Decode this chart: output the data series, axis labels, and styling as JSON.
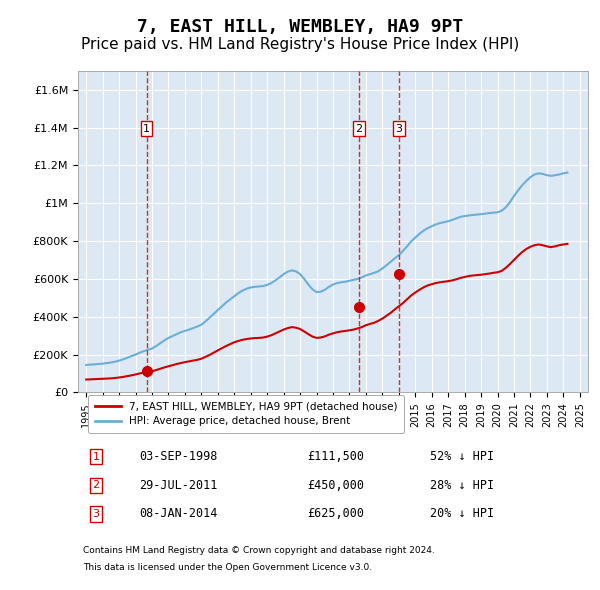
{
  "title": "7, EAST HILL, WEMBLEY, HA9 9PT",
  "subtitle": "Price paid vs. HM Land Registry's House Price Index (HPI)",
  "title_fontsize": 13,
  "subtitle_fontsize": 11,
  "background_color": "#ffffff",
  "plot_bg_color": "#dce9f5",
  "grid_color": "#ffffff",
  "hpi_color": "#6baed6",
  "paid_color": "#cc0000",
  "purchases": [
    {
      "date_num": 1998.67,
      "price": 111500,
      "label": "1"
    },
    {
      "date_num": 2011.57,
      "price": 450000,
      "label": "2"
    },
    {
      "date_num": 2014.02,
      "price": 625000,
      "label": "3"
    }
  ],
  "vline_dates": [
    1998.67,
    2011.57,
    2014.02
  ],
  "ylim": [
    0,
    1700000
  ],
  "yticks": [
    0,
    200000,
    400000,
    600000,
    800000,
    1000000,
    1200000,
    1400000,
    1600000
  ],
  "ytick_labels": [
    "£0",
    "£200K",
    "£400K",
    "£600K",
    "£800K",
    "£1M",
    "£1.2M",
    "£1.4M",
    "£1.6M"
  ],
  "xlim_start": 1994.5,
  "xlim_end": 2025.5,
  "xtick_years": [
    1995,
    1996,
    1997,
    1998,
    1999,
    2000,
    2001,
    2002,
    2003,
    2004,
    2005,
    2006,
    2007,
    2008,
    2009,
    2010,
    2011,
    2012,
    2013,
    2014,
    2015,
    2016,
    2017,
    2018,
    2019,
    2020,
    2021,
    2022,
    2023,
    2024,
    2025
  ],
  "legend_paid_label": "7, EAST HILL, WEMBLEY, HA9 9PT (detached house)",
  "legend_hpi_label": "HPI: Average price, detached house, Brent",
  "table_rows": [
    {
      "num": "1",
      "date": "03-SEP-1998",
      "price": "£111,500",
      "note": "52% ↓ HPI"
    },
    {
      "num": "2",
      "date": "29-JUL-2011",
      "price": "£450,000",
      "note": "28% ↓ HPI"
    },
    {
      "num": "3",
      "date": "08-JAN-2014",
      "price": "£625,000",
      "note": "20% ↓ HPI"
    }
  ],
  "footnote1": "Contains HM Land Registry data © Crown copyright and database right 2024.",
  "footnote2": "This data is licensed under the Open Government Licence v3.0.",
  "hpi_data": {
    "years": [
      1995.0,
      1995.25,
      1995.5,
      1995.75,
      1996.0,
      1996.25,
      1996.5,
      1996.75,
      1997.0,
      1997.25,
      1997.5,
      1997.75,
      1998.0,
      1998.25,
      1998.5,
      1998.75,
      1999.0,
      1999.25,
      1999.5,
      1999.75,
      2000.0,
      2000.25,
      2000.5,
      2000.75,
      2001.0,
      2001.25,
      2001.5,
      2001.75,
      2002.0,
      2002.25,
      2002.5,
      2002.75,
      2003.0,
      2003.25,
      2003.5,
      2003.75,
      2004.0,
      2004.25,
      2004.5,
      2004.75,
      2005.0,
      2005.25,
      2005.5,
      2005.75,
      2006.0,
      2006.25,
      2006.5,
      2006.75,
      2007.0,
      2007.25,
      2007.5,
      2007.75,
      2008.0,
      2008.25,
      2008.5,
      2008.75,
      2009.0,
      2009.25,
      2009.5,
      2009.75,
      2010.0,
      2010.25,
      2010.5,
      2010.75,
      2011.0,
      2011.25,
      2011.5,
      2011.75,
      2012.0,
      2012.25,
      2012.5,
      2012.75,
      2013.0,
      2013.25,
      2013.5,
      2013.75,
      2014.0,
      2014.25,
      2014.5,
      2014.75,
      2015.0,
      2015.25,
      2015.5,
      2015.75,
      2016.0,
      2016.25,
      2016.5,
      2016.75,
      2017.0,
      2017.25,
      2017.5,
      2017.75,
      2018.0,
      2018.25,
      2018.5,
      2018.75,
      2019.0,
      2019.25,
      2019.5,
      2019.75,
      2020.0,
      2020.25,
      2020.5,
      2020.75,
      2021.0,
      2021.25,
      2021.5,
      2021.75,
      2022.0,
      2022.25,
      2022.5,
      2022.75,
      2023.0,
      2023.25,
      2023.5,
      2023.75,
      2024.0,
      2024.25
    ],
    "values": [
      145000,
      147000,
      148000,
      150000,
      152000,
      155000,
      158000,
      162000,
      168000,
      175000,
      183000,
      192000,
      200000,
      210000,
      218000,
      225000,
      232000,
      245000,
      260000,
      275000,
      288000,
      298000,
      308000,
      318000,
      325000,
      332000,
      340000,
      348000,
      358000,
      375000,
      395000,
      415000,
      435000,
      455000,
      475000,
      492000,
      508000,
      525000,
      538000,
      548000,
      555000,
      558000,
      560000,
      562000,
      568000,
      578000,
      592000,
      608000,
      625000,
      638000,
      645000,
      640000,
      625000,
      600000,
      570000,
      545000,
      530000,
      532000,
      542000,
      558000,
      570000,
      578000,
      582000,
      585000,
      590000,
      595000,
      600000,
      608000,
      618000,
      625000,
      632000,
      640000,
      655000,
      672000,
      690000,
      708000,
      725000,
      748000,
      772000,
      798000,
      818000,
      838000,
      855000,
      868000,
      878000,
      888000,
      895000,
      900000,
      905000,
      912000,
      920000,
      928000,
      932000,
      935000,
      938000,
      940000,
      942000,
      945000,
      948000,
      950000,
      952000,
      960000,
      978000,
      1005000,
      1038000,
      1068000,
      1095000,
      1118000,
      1138000,
      1152000,
      1158000,
      1155000,
      1148000,
      1145000,
      1148000,
      1152000,
      1158000,
      1162000
    ]
  },
  "paid_data": {
    "years": [
      1995.0,
      1995.25,
      1995.5,
      1995.75,
      1996.0,
      1996.25,
      1996.5,
      1996.75,
      1997.0,
      1997.25,
      1997.5,
      1997.75,
      1998.0,
      1998.25,
      1998.5,
      1998.75,
      1999.0,
      1999.25,
      1999.5,
      1999.75,
      2000.0,
      2000.25,
      2000.5,
      2000.75,
      2001.0,
      2001.25,
      2001.5,
      2001.75,
      2002.0,
      2002.25,
      2002.5,
      2002.75,
      2003.0,
      2003.25,
      2003.5,
      2003.75,
      2004.0,
      2004.25,
      2004.5,
      2004.75,
      2005.0,
      2005.25,
      2005.5,
      2005.75,
      2006.0,
      2006.25,
      2006.5,
      2006.75,
      2007.0,
      2007.25,
      2007.5,
      2007.75,
      2008.0,
      2008.25,
      2008.5,
      2008.75,
      2009.0,
      2009.25,
      2009.5,
      2009.75,
      2010.0,
      2010.25,
      2010.5,
      2010.75,
      2011.0,
      2011.25,
      2011.5,
      2011.75,
      2012.0,
      2012.25,
      2012.5,
      2012.75,
      2013.0,
      2013.25,
      2013.5,
      2013.75,
      2014.0,
      2014.25,
      2014.5,
      2014.75,
      2015.0,
      2015.25,
      2015.5,
      2015.75,
      2016.0,
      2016.25,
      2016.5,
      2016.75,
      2017.0,
      2017.25,
      2017.5,
      2017.75,
      2018.0,
      2018.25,
      2018.5,
      2018.75,
      2019.0,
      2019.25,
      2019.5,
      2019.75,
      2020.0,
      2020.25,
      2020.5,
      2020.75,
      2021.0,
      2021.25,
      2021.5,
      2021.75,
      2022.0,
      2022.25,
      2022.5,
      2022.75,
      2023.0,
      2023.25,
      2023.5,
      2023.75,
      2024.0,
      2024.25
    ],
    "values": [
      68000,
      69000,
      70000,
      71000,
      72000,
      73000,
      74000,
      76000,
      79000,
      82000,
      86000,
      90000,
      95000,
      100000,
      105000,
      108000,
      112000,
      118000,
      125000,
      132000,
      138000,
      144000,
      150000,
      155000,
      160000,
      164000,
      168000,
      172000,
      178000,
      188000,
      198000,
      210000,
      222000,
      234000,
      245000,
      255000,
      265000,
      272000,
      278000,
      282000,
      285000,
      287000,
      288000,
      290000,
      295000,
      302000,
      312000,
      322000,
      332000,
      340000,
      345000,
      342000,
      335000,
      322000,
      308000,
      295000,
      288000,
      290000,
      296000,
      305000,
      312000,
      318000,
      322000,
      325000,
      328000,
      332000,
      338000,
      345000,
      355000,
      362000,
      368000,
      378000,
      390000,
      405000,
      420000,
      438000,
      455000,
      472000,
      492000,
      512000,
      528000,
      542000,
      555000,
      565000,
      572000,
      578000,
      582000,
      585000,
      588000,
      592000,
      598000,
      605000,
      610000,
      615000,
      618000,
      620000,
      622000,
      625000,
      628000,
      632000,
      635000,
      642000,
      658000,
      678000,
      700000,
      722000,
      742000,
      758000,
      770000,
      778000,
      782000,
      778000,
      772000,
      768000,
      772000,
      778000,
      782000,
      785000
    ]
  }
}
